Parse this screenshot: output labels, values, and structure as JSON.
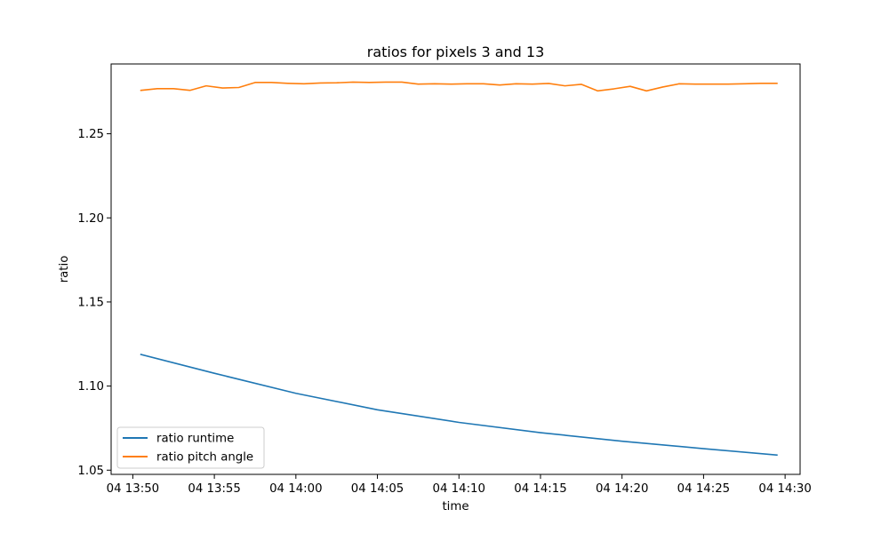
{
  "chart_data": {
    "type": "line",
    "title": "ratios for pixels 3 and 13",
    "xlabel": "time",
    "ylabel": "ratio",
    "x_ticks": [
      "04 13:50",
      "04 13:55",
      "04 14:00",
      "04 14:05",
      "04 14:10",
      "04 14:15",
      "04 14:20",
      "04 14:25",
      "04 14:30"
    ],
    "x_tick_times": [
      "13:50",
      "13:55",
      "14:00",
      "14:05",
      "14:10",
      "14:15",
      "14:20",
      "14:25",
      "14:30"
    ],
    "y_ticks": [
      "1.05",
      "1.10",
      "1.15",
      "1.20",
      "1.25"
    ],
    "xlim": [
      "13:48.67",
      "14:30.92"
    ],
    "ylim": [
      1.0475,
      1.2915
    ],
    "legend_position": "lower-left",
    "grid": false,
    "series": [
      {
        "name": "ratio runtime",
        "color": "#1f77b4",
        "x": [
          "13:50.5",
          "13:55",
          "14:00",
          "14:05",
          "14:10",
          "14:15",
          "14:20",
          "14:25",
          "14:29.5"
        ],
        "y": [
          1.1188,
          1.1076,
          1.0957,
          1.0859,
          1.0784,
          1.0723,
          1.0672,
          1.0628,
          1.059
        ]
      },
      {
        "name": "ratio pitch angle",
        "color": "#ff7f0e",
        "x": [
          "13:50.5",
          "13:51.5",
          "13:52.5",
          "13:53.5",
          "13:54.5",
          "13:55.5",
          "13:56.5",
          "13:57.5",
          "13:58.5",
          "13:59.5",
          "14:00.5",
          "14:01.5",
          "14:02.5",
          "14:03.5",
          "14:04.5",
          "14:05.5",
          "14:06.5",
          "14:07.5",
          "14:08.5",
          "14:09.5",
          "14:10.5",
          "14:11.5",
          "14:12.5",
          "14:13.5",
          "14:14.5",
          "14:15.5",
          "14:16.5",
          "14:17.5",
          "14:18.5",
          "14:19.5",
          "14:20.5",
          "14:21.5",
          "14:22.5",
          "14:23.5",
          "14:24.5",
          "14:25.5",
          "14:26.5",
          "14:27.5",
          "14:28.5",
          "14:29.5"
        ],
        "y": [
          1.2758,
          1.2768,
          1.2768,
          1.2758,
          1.2785,
          1.2772,
          1.2775,
          1.2805,
          1.2805,
          1.28,
          1.2797,
          1.2802,
          1.2803,
          1.2807,
          1.2805,
          1.2807,
          1.2807,
          1.2795,
          1.2797,
          1.2795,
          1.2797,
          1.2797,
          1.279,
          1.2797,
          1.2795,
          1.2799,
          1.2785,
          1.2794,
          1.2755,
          1.2767,
          1.2782,
          1.2755,
          1.2778,
          1.2797,
          1.2795,
          1.2795,
          1.2795,
          1.2797,
          1.28,
          1.28
        ]
      }
    ]
  }
}
